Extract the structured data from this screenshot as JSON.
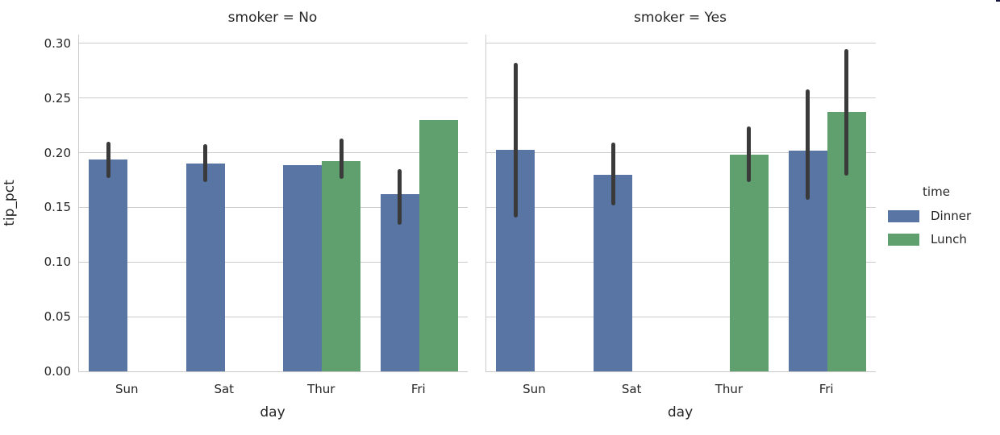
{
  "legend": {
    "title": "time",
    "entries": [
      {
        "label": "Dinner",
        "color": "#5875a3"
      },
      {
        "label": "Lunch",
        "color": "#5fa06e"
      }
    ]
  },
  "chart_data": {
    "type": "bar",
    "facet_by": "smoker",
    "hue": "time",
    "xlabel": "day",
    "ylabel": "tip_pct",
    "categories": [
      "Sun",
      "Sat",
      "Thur",
      "Fri"
    ],
    "ylim": [
      0,
      0.308
    ],
    "yticks": [
      0.0,
      0.05,
      0.1,
      0.15,
      0.2,
      0.25,
      0.3
    ],
    "ytick_labels": [
      "0.00",
      "0.05",
      "0.10",
      "0.15",
      "0.20",
      "0.25",
      "0.30"
    ],
    "grid": true,
    "legend_position": "right",
    "series_colors": {
      "Dinner": "#5875a3",
      "Lunch": "#5fa06e"
    },
    "error_bar_color": "#3a3a3a",
    "facets": [
      {
        "title": "smoker = No",
        "bars": [
          {
            "day": "Sun",
            "time": "Dinner",
            "value": 0.194,
            "ci": [
              0.177,
              0.21
            ]
          },
          {
            "day": "Sat",
            "time": "Dinner",
            "value": 0.19,
            "ci": [
              0.173,
              0.208
            ]
          },
          {
            "day": "Thur",
            "time": "Dinner",
            "value": 0.189,
            "ci": null
          },
          {
            "day": "Thur",
            "time": "Lunch",
            "value": 0.192,
            "ci": [
              0.176,
              0.213
            ]
          },
          {
            "day": "Fri",
            "time": "Dinner",
            "value": 0.162,
            "ci": [
              0.134,
              0.185
            ]
          },
          {
            "day": "Fri",
            "time": "Lunch",
            "value": 0.23,
            "ci": null
          }
        ]
      },
      {
        "title": "smoker = Yes",
        "bars": [
          {
            "day": "Sun",
            "time": "Dinner",
            "value": 0.203,
            "ci": [
              0.141,
              0.282
            ]
          },
          {
            "day": "Sat",
            "time": "Dinner",
            "value": 0.18,
            "ci": [
              0.152,
              0.209
            ]
          },
          {
            "day": "Thur",
            "time": "Lunch",
            "value": 0.198,
            "ci": [
              0.173,
              0.224
            ]
          },
          {
            "day": "Fri",
            "time": "Dinner",
            "value": 0.202,
            "ci": [
              0.157,
              0.258
            ]
          },
          {
            "day": "Fri",
            "time": "Lunch",
            "value": 0.237,
            "ci": [
              0.179,
              0.295
            ]
          }
        ]
      }
    ]
  }
}
